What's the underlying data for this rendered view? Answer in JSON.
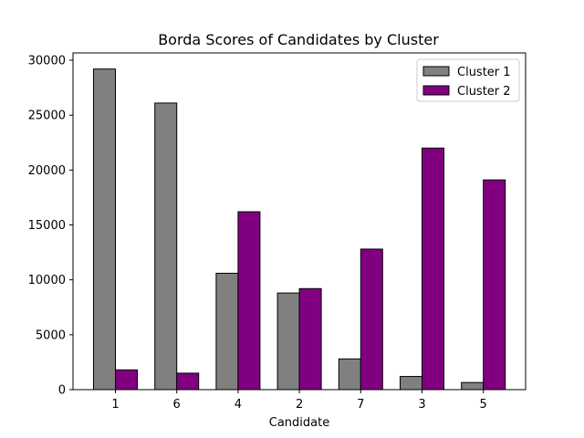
{
  "chart_data": {
    "type": "bar",
    "title": "Borda Scores of Candidates by Cluster",
    "xlabel": "Candidate",
    "ylabel": "",
    "categories": [
      "1",
      "6",
      "4",
      "2",
      "7",
      "3",
      "5"
    ],
    "series": [
      {
        "name": "Cluster 1",
        "color": "#808080",
        "values": [
          29200,
          26100,
          10600,
          8800,
          2800,
          1200,
          650
        ]
      },
      {
        "name": "Cluster 2",
        "color": "#800080",
        "values": [
          1800,
          1500,
          16200,
          9200,
          12800,
          22000,
          19100
        ]
      }
    ],
    "ylim": [
      0,
      30000
    ],
    "yticks": [
      0,
      5000,
      10000,
      15000,
      20000,
      25000,
      30000
    ],
    "grid": false,
    "legend_position": "top-right"
  }
}
